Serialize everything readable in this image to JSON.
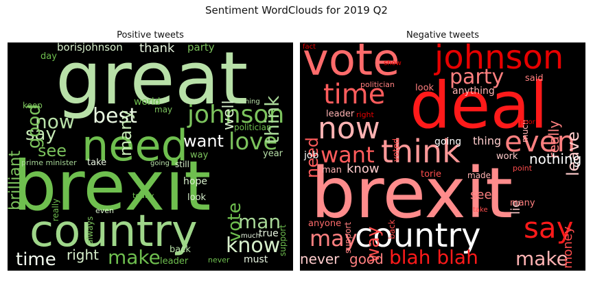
{
  "figure": {
    "title": "Sentiment WordClouds for 2019 Q2"
  },
  "panels": {
    "positive": {
      "title": "Positive tweets",
      "words": [
        {
          "text": "great",
          "color": "#b8e0a8"
        },
        {
          "text": "brexit",
          "color": "#6fbf4f"
        },
        {
          "text": "country",
          "color": "#9fd68a"
        },
        {
          "text": "need",
          "color": "#6fbf4f"
        },
        {
          "text": "johnson",
          "color": "#7cc35d"
        },
        {
          "text": "best",
          "color": "#e8f5e0"
        },
        {
          "text": "now",
          "color": "#b8e0a8"
        },
        {
          "text": "love",
          "color": "#7cc35d"
        },
        {
          "text": "know",
          "color": "#d8f0cc"
        },
        {
          "text": "man",
          "color": "#a8d898"
        },
        {
          "text": "make",
          "color": "#6fbf4f"
        },
        {
          "text": "time",
          "color": "#f4fbf0"
        },
        {
          "text": "right",
          "color": "#d8f0cc"
        },
        {
          "text": "say",
          "color": "#c8ebb8"
        },
        {
          "text": "see",
          "color": "#7cc35d"
        },
        {
          "text": "want",
          "color": "#ffffff"
        },
        {
          "text": "good",
          "color": "#7cc35d"
        },
        {
          "text": "brilliant",
          "color": "#7cc35d"
        },
        {
          "text": "many",
          "color": "#c8ebb8"
        },
        {
          "text": "well",
          "color": "#d8f0cc"
        },
        {
          "text": "think",
          "color": "#a8d898"
        },
        {
          "text": "vote",
          "color": "#6fbf4f"
        },
        {
          "text": "borisjohnson",
          "color": "#d8f0cc"
        },
        {
          "text": "thank",
          "color": "#e8f5e0"
        },
        {
          "text": "party",
          "color": "#7cc35d"
        },
        {
          "text": "day",
          "color": "#6fbf4f"
        },
        {
          "text": "keep",
          "color": "#7cc35d"
        },
        {
          "text": "world",
          "color": "#6fbf4f"
        },
        {
          "text": "may",
          "color": "#7cc35d"
        },
        {
          "text": "thing",
          "color": "#b8e0a8"
        },
        {
          "text": "politician",
          "color": "#6fbf4f"
        },
        {
          "text": "way",
          "color": "#7cc35d"
        },
        {
          "text": "year",
          "color": "#b8e0a8"
        },
        {
          "text": "prime minister",
          "color": "#a8d898"
        },
        {
          "text": "take",
          "color": "#e8f5e0"
        },
        {
          "text": "going",
          "color": "#b8e0a8"
        },
        {
          "text": "still",
          "color": "#d8f0cc"
        },
        {
          "text": "hope",
          "color": "#d8f0cc"
        },
        {
          "text": "really",
          "color": "#6fbf4f"
        },
        {
          "text": "always",
          "color": "#7cc35d"
        },
        {
          "text": "today",
          "color": "#6fbf4f"
        },
        {
          "text": "look",
          "color": "#d8f0cc"
        },
        {
          "text": "support",
          "color": "#6fbf4f"
        },
        {
          "text": "even",
          "color": "#d8f0cc"
        },
        {
          "text": "much",
          "color": "#e8f5e0"
        },
        {
          "text": "true",
          "color": "#e8f5e0"
        },
        {
          "text": "back",
          "color": "#b8e0a8"
        },
        {
          "text": "leader",
          "color": "#6fbf4f"
        },
        {
          "text": "never",
          "color": "#6fbf4f"
        },
        {
          "text": "must",
          "color": "#e8f5e0"
        }
      ]
    },
    "negative": {
      "title": "Negative tweets",
      "words": [
        {
          "text": "vote",
          "color": "#ff6b6b"
        },
        {
          "text": "johnson",
          "color": "#e60000"
        },
        {
          "text": "deal",
          "color": "#ff1a1a"
        },
        {
          "text": "time",
          "color": "#ff5c5c"
        },
        {
          "text": "party",
          "color": "#ff8080"
        },
        {
          "text": "now",
          "color": "#ffb3b3"
        },
        {
          "text": "think",
          "color": "#ff9999"
        },
        {
          "text": "even",
          "color": "#ff8080"
        },
        {
          "text": "want",
          "color": "#ff5c5c"
        },
        {
          "text": "brexit",
          "color": "#ff8c8c"
        },
        {
          "text": "country",
          "color": "#ffffff"
        },
        {
          "text": "say",
          "color": "#ff1a1a"
        },
        {
          "text": "may",
          "color": "#ff8080"
        },
        {
          "text": "way",
          "color": "#ff4d4d"
        },
        {
          "text": "blah blah",
          "color": "#ff1a1a"
        },
        {
          "text": "make",
          "color": "#ffb3b3"
        },
        {
          "text": "never",
          "color": "#ffcccc"
        },
        {
          "text": "good",
          "color": "#ff8080"
        },
        {
          "text": "need",
          "color": "#ff5c5c"
        },
        {
          "text": "leave",
          "color": "#ffcccc"
        },
        {
          "text": "really",
          "color": "#ff8080"
        },
        {
          "text": "nothing",
          "color": "#ffffff"
        },
        {
          "text": "know",
          "color": "#ffcccc"
        },
        {
          "text": "see",
          "color": "#ff8080"
        },
        {
          "text": "lie",
          "color": "#ffcccc"
        },
        {
          "text": "money",
          "color": "#ff4d4d"
        },
        {
          "text": "fact",
          "color": "#e60000"
        },
        {
          "text": "show",
          "color": "#e60000"
        },
        {
          "text": "politician",
          "color": "#ff8080"
        },
        {
          "text": "look",
          "color": "#ff8080"
        },
        {
          "text": "anything",
          "color": "#ffb3b3"
        },
        {
          "text": "said",
          "color": "#ff8080"
        },
        {
          "text": "leader",
          "color": "#ffb3b3"
        },
        {
          "text": "right",
          "color": "#e60000"
        },
        {
          "text": "voted",
          "color": "#ff4d4d"
        },
        {
          "text": "much",
          "color": "#ffb3b3"
        },
        {
          "text": "poor",
          "color": "#e60000"
        },
        {
          "text": "going",
          "color": "#ffffff"
        },
        {
          "text": "thing",
          "color": "#ffcccc"
        },
        {
          "text": "job",
          "color": "#ffffff"
        },
        {
          "text": "work",
          "color": "#ffcccc"
        },
        {
          "text": "point",
          "color": "#ff4d4d"
        },
        {
          "text": "man",
          "color": "#ffb3b3"
        },
        {
          "text": "torie",
          "color": "#ff4d4d"
        },
        {
          "text": "made",
          "color": "#ffb3b3"
        },
        {
          "text": "support",
          "color": "#ff8080"
        },
        {
          "text": "back",
          "color": "#ff4d4d"
        },
        {
          "text": "many",
          "color": "#ff8080"
        },
        {
          "text": "take",
          "color": "#ff4d4d"
        },
        {
          "text": "anyone",
          "color": "#ff6b6b"
        }
      ]
    }
  }
}
